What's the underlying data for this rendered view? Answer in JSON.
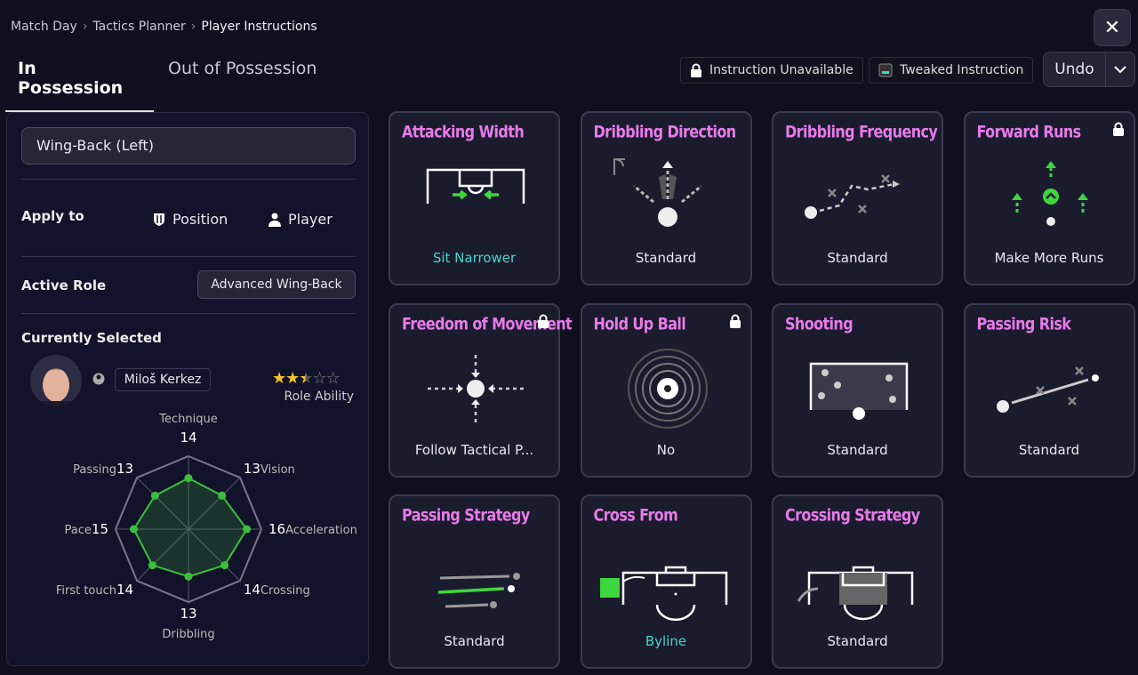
{
  "breadcrumb": [
    "Match Day",
    "Tactics Planner",
    "Player Instructions"
  ],
  "tabs": [
    {
      "label": "In Possession",
      "active": true
    },
    {
      "label": "Out of Possession",
      "active": false
    }
  ],
  "legend": {
    "unavailable": "Instruction Unavailable",
    "tweaked": "Tweaked Instruction"
  },
  "undo": {
    "label": "Undo"
  },
  "close_icon": "close-icon",
  "panel": {
    "position_select": "Wing-Back (Left)",
    "apply_to": {
      "label": "Apply to",
      "options": [
        "Position",
        "Player"
      ]
    },
    "active_role": {
      "label": "Active Role",
      "value": "Advanced Wing-Back"
    },
    "currently_selected": "Currently Selected",
    "player": {
      "name": "Miloš Kerkez",
      "role_ability_label": "Role Ability",
      "role_ability_stars": 2.5,
      "max_stars": 5
    },
    "attributes": [
      {
        "name": "Technique",
        "value": 14
      },
      {
        "name": "Vision",
        "value": 13
      },
      {
        "name": "Acceleration",
        "value": 16
      },
      {
        "name": "Crossing",
        "value": 14
      },
      {
        "name": "Dribbling",
        "value": 13
      },
      {
        "name": "First touch",
        "value": 14
      },
      {
        "name": "Pace",
        "value": 15
      },
      {
        "name": "Passing",
        "value": 13
      }
    ],
    "attribute_max": 20
  },
  "colors": {
    "accent_title": "#e77be8",
    "tweaked": "#45d6c8",
    "radar": "#3bbf3b",
    "star": "#f5c02c"
  },
  "cards": [
    {
      "title": "Attacking Width",
      "value": "Sit Narrower",
      "tweaked": true,
      "locked": false,
      "icon": "width"
    },
    {
      "title": "Dribbling Direction",
      "value": "Standard",
      "tweaked": false,
      "locked": false,
      "icon": "dribble-dir"
    },
    {
      "title": "Dribbling Frequency",
      "value": "Standard",
      "tweaked": false,
      "locked": false,
      "icon": "dribble-freq"
    },
    {
      "title": "Forward Runs",
      "value": "Make More Runs",
      "tweaked": false,
      "locked": true,
      "icon": "runs"
    },
    {
      "title": "Freedom of Movement",
      "value": "Follow Tactical P...",
      "tweaked": false,
      "locked": true,
      "icon": "freedom"
    },
    {
      "title": "Hold Up Ball",
      "value": "No",
      "tweaked": false,
      "locked": true,
      "icon": "holdup"
    },
    {
      "title": "Shooting",
      "value": "Standard",
      "tweaked": false,
      "locked": false,
      "icon": "shooting"
    },
    {
      "title": "Passing Risk",
      "value": "Standard",
      "tweaked": false,
      "locked": false,
      "icon": "passrisk"
    },
    {
      "title": "Passing Strategy",
      "value": "Standard",
      "tweaked": false,
      "locked": false,
      "icon": "passstrat"
    },
    {
      "title": "Cross From",
      "value": "Byline",
      "tweaked": true,
      "locked": false,
      "icon": "crossfrom"
    },
    {
      "title": "Crossing Strategy",
      "value": "Standard",
      "tweaked": false,
      "locked": false,
      "icon": "crossstrat"
    }
  ]
}
